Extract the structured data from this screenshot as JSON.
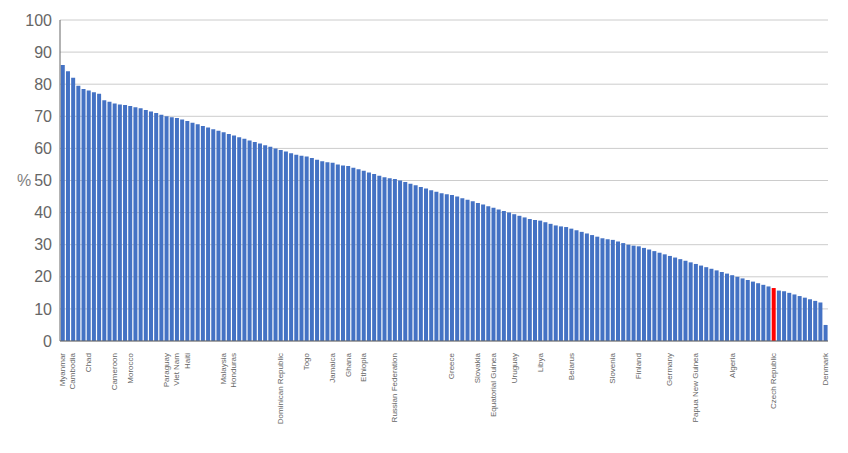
{
  "chart_data": {
    "type": "bar",
    "ylabel": "%",
    "ylim": [
      0,
      100
    ],
    "yticks": [
      0,
      10,
      20,
      30,
      40,
      50,
      60,
      70,
      80,
      90,
      100
    ],
    "grid": true,
    "categories": [
      "Myanmar",
      null,
      "Cambodia",
      null,
      null,
      "Chad",
      null,
      null,
      null,
      null,
      "Cameroon",
      null,
      null,
      "Morocco",
      null,
      null,
      null,
      null,
      null,
      null,
      "Paraguay",
      null,
      "Viet Nam",
      null,
      "Haiti",
      null,
      null,
      null,
      null,
      null,
      null,
      "Malaysia",
      null,
      "Honduras",
      null,
      null,
      null,
      null,
      null,
      null,
      null,
      null,
      "Dominican Republic",
      null,
      null,
      null,
      null,
      "Togo",
      null,
      null,
      null,
      null,
      "Jamaica",
      null,
      null,
      "Ghana",
      null,
      null,
      "Ethiopia",
      null,
      null,
      null,
      null,
      null,
      "Russian Federation",
      null,
      null,
      null,
      null,
      null,
      null,
      null,
      null,
      null,
      null,
      "Greece",
      null,
      null,
      null,
      null,
      "Slovakia",
      null,
      null,
      "Equatorial Guinea",
      null,
      null,
      null,
      "Uruguay",
      null,
      null,
      null,
      null,
      "Libya",
      null,
      null,
      null,
      null,
      null,
      "Belarus",
      null,
      null,
      null,
      null,
      null,
      null,
      null,
      "Slovenia",
      null,
      null,
      null,
      null,
      "Finland",
      null,
      null,
      null,
      null,
      null,
      "Germany",
      null,
      null,
      null,
      null,
      "Papua New Guinea",
      null,
      null,
      null,
      null,
      null,
      null,
      "Algeria",
      null,
      null,
      null,
      null,
      null,
      null,
      null,
      "Czech Republic",
      null,
      null,
      null,
      null,
      null,
      null,
      null,
      null,
      null,
      "Denmark"
    ],
    "values": [
      86.0,
      84.0,
      82.0,
      79.5,
      78.5,
      78.0,
      77.5,
      77.0,
      75.0,
      74.5,
      74.0,
      73.7,
      73.5,
      73.2,
      72.8,
      72.5,
      72.0,
      71.5,
      71.0,
      70.5,
      70.0,
      69.7,
      69.5,
      69.0,
      68.5,
      68.0,
      67.5,
      67.0,
      66.5,
      66.0,
      65.5,
      65.0,
      64.5,
      64.0,
      63.5,
      63.0,
      62.5,
      62.0,
      61.5,
      61.0,
      60.5,
      60.0,
      59.5,
      59.0,
      58.5,
      58.0,
      57.7,
      57.5,
      57.0,
      56.5,
      56.0,
      55.7,
      55.5,
      55.0,
      54.7,
      54.5,
      54.0,
      53.5,
      53.0,
      52.5,
      52.0,
      51.5,
      51.0,
      50.7,
      50.5,
      50.0,
      49.5,
      49.0,
      48.5,
      48.0,
      47.5,
      47.0,
      46.5,
      46.0,
      45.7,
      45.5,
      45.0,
      44.5,
      44.0,
      43.5,
      43.0,
      42.5,
      42.0,
      41.5,
      41.0,
      40.5,
      40.0,
      39.5,
      39.0,
      38.5,
      38.0,
      37.7,
      37.5,
      37.0,
      36.5,
      36.0,
      35.7,
      35.5,
      35.0,
      34.5,
      34.0,
      33.5,
      33.0,
      32.5,
      32.0,
      31.7,
      31.5,
      31.0,
      30.5,
      30.0,
      29.7,
      29.5,
      29.0,
      28.5,
      28.0,
      27.5,
      27.0,
      26.5,
      26.0,
      25.5,
      25.0,
      24.5,
      24.0,
      23.5,
      23.0,
      22.5,
      22.0,
      21.5,
      21.0,
      20.5,
      20.0,
      19.5,
      19.0,
      18.5,
      18.0,
      17.5,
      17.0,
      16.5,
      15.7,
      15.5,
      15.0,
      14.5,
      14.0,
      13.5,
      13.0,
      12.5,
      12.0,
      5.0
    ],
    "colors": [
      "#4472C4",
      "#4472C4",
      "#4472C4",
      "#4472C4",
      "#4472C4",
      "#4472C4",
      "#4472C4",
      "#4472C4",
      "#4472C4",
      "#4472C4",
      "#4472C4",
      "#4472C4",
      "#4472C4",
      "#4472C4",
      "#4472C4",
      "#4472C4",
      "#4472C4",
      "#4472C4",
      "#4472C4",
      "#4472C4",
      "#4472C4",
      "#4472C4",
      "#4472C4",
      "#4472C4",
      "#4472C4",
      "#4472C4",
      "#4472C4",
      "#4472C4",
      "#4472C4",
      "#4472C4",
      "#4472C4",
      "#4472C4",
      "#4472C4",
      "#4472C4",
      "#4472C4",
      "#4472C4",
      "#4472C4",
      "#4472C4",
      "#4472C4",
      "#4472C4",
      "#4472C4",
      "#4472C4",
      "#4472C4",
      "#4472C4",
      "#4472C4",
      "#4472C4",
      "#4472C4",
      "#4472C4",
      "#4472C4",
      "#4472C4",
      "#4472C4",
      "#4472C4",
      "#4472C4",
      "#4472C4",
      "#4472C4",
      "#4472C4",
      "#4472C4",
      "#4472C4",
      "#4472C4",
      "#4472C4",
      "#4472C4",
      "#4472C4",
      "#4472C4",
      "#4472C4",
      "#4472C4",
      "#4472C4",
      "#4472C4",
      "#4472C4",
      "#4472C4",
      "#4472C4",
      "#4472C4",
      "#4472C4",
      "#4472C4",
      "#4472C4",
      "#4472C4",
      "#4472C4",
      "#4472C4",
      "#4472C4",
      "#4472C4",
      "#4472C4",
      "#4472C4",
      "#4472C4",
      "#4472C4",
      "#4472C4",
      "#4472C4",
      "#4472C4",
      "#4472C4",
      "#4472C4",
      "#4472C4",
      "#4472C4",
      "#4472C4",
      "#4472C4",
      "#4472C4",
      "#4472C4",
      "#4472C4",
      "#4472C4",
      "#4472C4",
      "#4472C4",
      "#4472C4",
      "#4472C4",
      "#4472C4",
      "#4472C4",
      "#4472C4",
      "#4472C4",
      "#4472C4",
      "#4472C4",
      "#4472C4",
      "#4472C4",
      "#4472C4",
      "#4472C4",
      "#4472C4",
      "#4472C4",
      "#4472C4",
      "#4472C4",
      "#4472C4",
      "#4472C4",
      "#4472C4",
      "#4472C4",
      "#4472C4",
      "#4472C4",
      "#4472C4",
      "#4472C4",
      "#4472C4",
      "#4472C4",
      "#4472C4",
      "#4472C4",
      "#4472C4",
      "#4472C4",
      "#4472C4",
      "#4472C4",
      "#4472C4",
      "#4472C4",
      "#4472C4",
      "#4472C4",
      "#4472C4",
      "#4472C4",
      "#4472C4",
      "#FF0000",
      "#4472C4",
      "#4472C4",
      "#4472C4",
      "#4472C4",
      "#4472C4",
      "#4472C4",
      "#4472C4",
      "#4472C4",
      "#4472C4",
      "#4472C4"
    ]
  }
}
